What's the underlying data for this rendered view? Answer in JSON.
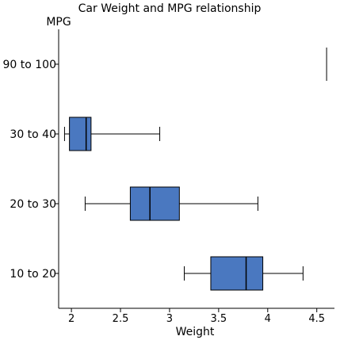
{
  "chart_data": {
    "type": "boxplot",
    "orientation": "horizontal",
    "title": "Car Weight and MPG relationship",
    "xlabel": "Weight",
    "ylabel": "MPG",
    "xlim": [
      1.87,
      4.68
    ],
    "xticks": [
      2,
      2.5,
      3,
      3.5,
      4,
      4.5
    ],
    "xtick_labels": [
      "2",
      "2.5",
      "3",
      "3.5",
      "4",
      "4.5"
    ],
    "categories": [
      "90 to 100",
      "30 to 40",
      "20 to 30",
      "10 to 20"
    ],
    "box_color": "#4a78c0",
    "grid": false,
    "boxes": [
      {
        "category": "90 to 100",
        "min": 4.6,
        "q1": 4.6,
        "median": 4.6,
        "q3": 4.6,
        "max": 4.6
      },
      {
        "category": "30 to 40",
        "min": 1.93,
        "q1": 1.98,
        "median": 2.15,
        "q3": 2.2,
        "max": 2.9
      },
      {
        "category": "20 to 30",
        "min": 2.14,
        "q1": 2.6,
        "median": 2.8,
        "q3": 3.1,
        "max": 3.9
      },
      {
        "category": "10 to 20",
        "min": 3.15,
        "q1": 3.42,
        "median": 3.78,
        "q3": 3.95,
        "max": 4.36
      }
    ]
  }
}
